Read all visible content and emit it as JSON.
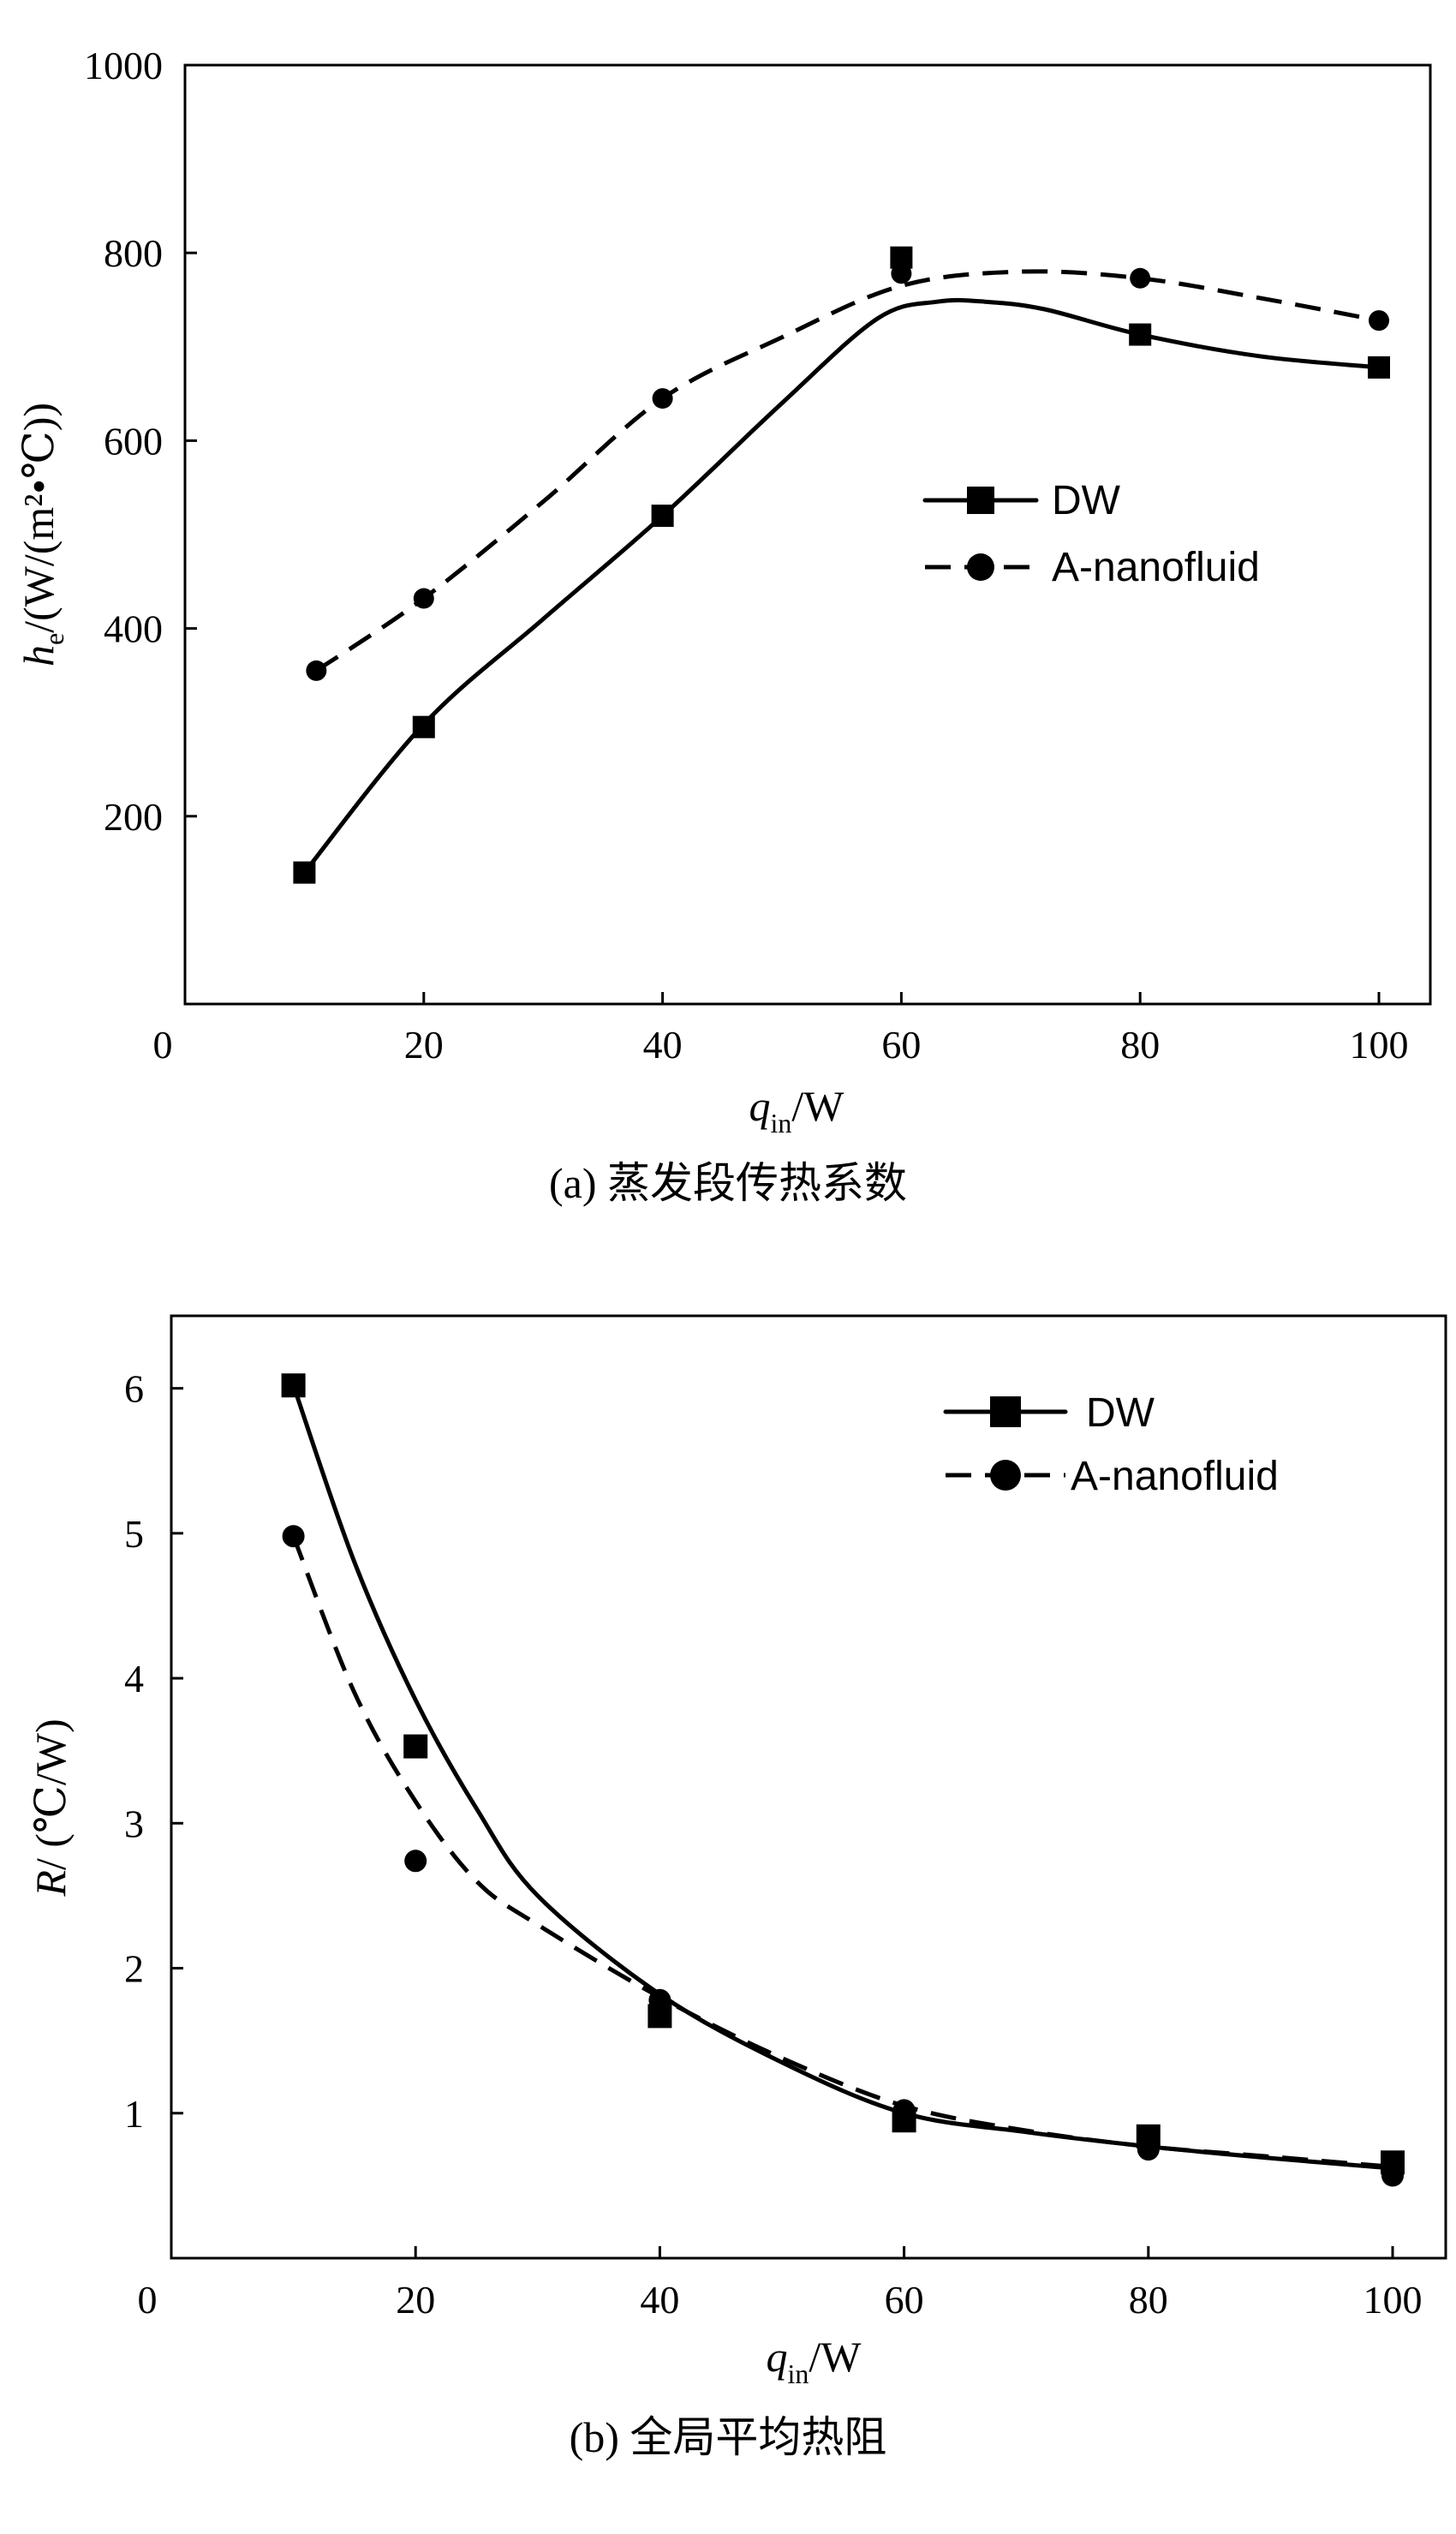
{
  "chart_data": [
    {
      "type": "line",
      "caption": "(a) 蒸发段传热系数",
      "xlabel": {
        "main": "q",
        "sub": "in",
        "suffix": "/W"
      },
      "ylabel": {
        "main": "h",
        "sub": "e",
        "suffix": "/(W/(m²•℃))"
      },
      "xlim": [
        0,
        105
      ],
      "ylim": [
        0,
        1000
      ],
      "xticks": [
        20,
        40,
        60,
        80,
        100
      ],
      "xtick_labels": [
        "20",
        "40",
        "60",
        "80",
        "100"
      ],
      "yticks": [
        200,
        400,
        600,
        800,
        1000
      ],
      "ytick_labels": [
        "200",
        "400",
        "600",
        "800",
        "1000"
      ],
      "origin_label": "0",
      "legend_position": "right-middle",
      "series": [
        {
          "name": "DW",
          "marker": "square",
          "line": "solid",
          "x": [
            10,
            20,
            40,
            60,
            80,
            100
          ],
          "y": [
            140,
            295,
            520,
            795,
            713,
            678
          ],
          "curve_x": [
            10,
            20,
            30,
            40,
            50,
            58,
            63,
            67,
            72,
            80,
            90,
            100
          ],
          "curve_y": [
            140,
            298,
            410,
            520,
            640,
            730,
            748,
            748,
            740,
            713,
            690,
            678
          ]
        },
        {
          "name": "A-nanofluid",
          "marker": "circle",
          "line": "dashed",
          "x": [
            11,
            20,
            40,
            60,
            80,
            100
          ],
          "y": [
            355,
            432,
            645,
            778,
            773,
            728
          ],
          "curve_x": [
            11,
            20,
            30,
            40,
            50,
            60,
            70,
            80,
            90,
            100
          ],
          "curve_y": [
            355,
            432,
            535,
            645,
            710,
            765,
            780,
            773,
            752,
            728
          ]
        }
      ]
    },
    {
      "type": "line",
      "caption": "(b) 全局平均热阻",
      "xlabel": {
        "main": "q",
        "sub": "in",
        "suffix": "/W"
      },
      "ylabel": {
        "main": "R",
        "suffix": "/ (℃/W)"
      },
      "xlim": [
        0,
        105
      ],
      "ylim": [
        0,
        6.5
      ],
      "xticks": [
        20,
        40,
        60,
        80,
        100
      ],
      "xtick_labels": [
        "20",
        "40",
        "60",
        "80",
        "100"
      ],
      "yticks": [
        1,
        2,
        3,
        4,
        5,
        6
      ],
      "ytick_labels": [
        "1",
        "2",
        "3",
        "4",
        "5",
        "6"
      ],
      "origin_label": "0",
      "legend_position": "top-right",
      "series": [
        {
          "name": "DW",
          "marker": "square",
          "line": "solid",
          "x": [
            10,
            20,
            40,
            60,
            80,
            100
          ],
          "y": [
            6.02,
            3.53,
            1.67,
            0.95,
            0.84,
            0.66
          ],
          "curve_x": [
            10,
            15,
            20,
            25,
            30,
            40,
            50,
            60,
            70,
            80,
            90,
            100
          ],
          "curve_y": [
            6.02,
            4.8,
            3.85,
            3.1,
            2.5,
            1.82,
            1.35,
            1.0,
            0.87,
            0.77,
            0.69,
            0.62
          ]
        },
        {
          "name": "A-nanofluid",
          "marker": "circle",
          "line": "dashed",
          "x": [
            10,
            20,
            40,
            60,
            80,
            100
          ],
          "y": [
            4.98,
            2.74,
            1.78,
            1.02,
            0.75,
            0.57
          ],
          "curve_x": [
            10,
            15,
            20,
            25,
            30,
            40,
            50,
            60,
            70,
            80,
            90,
            100
          ],
          "curve_y": [
            4.98,
            3.9,
            3.15,
            2.6,
            2.3,
            1.8,
            1.38,
            1.05,
            0.88,
            0.77,
            0.7,
            0.63
          ]
        }
      ]
    }
  ]
}
